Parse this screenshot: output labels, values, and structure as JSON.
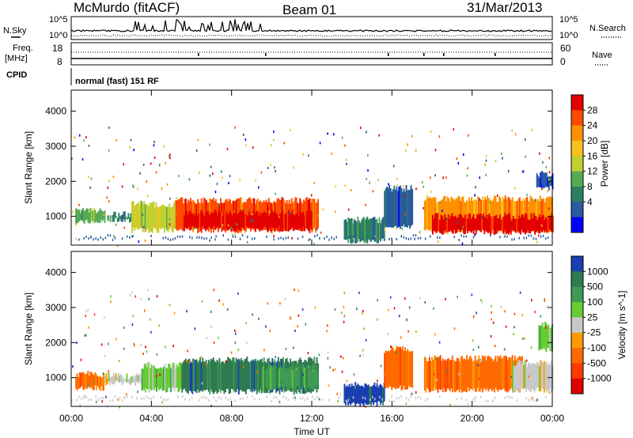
{
  "header": {
    "station": "McMurdo (fitACF)",
    "beam": "Beam 01",
    "date": "31/Mar/2013"
  },
  "top_panels": {
    "nsky_label": "N.Sky",
    "nsearch_label": "N.Search",
    "noise_left_ticks": [
      "10^5",
      "10^0"
    ],
    "noise_right_ticks": [
      "10^5",
      "10^0"
    ],
    "freq_label": "Freq.",
    "freq_unit": "[MHz]",
    "freq_ticks": [
      "18",
      "8"
    ],
    "nave_label": "Nave",
    "nave_ticks": [
      "60",
      "0"
    ],
    "cpid_label": "CPID",
    "cpid_text": "normal (fast) 151 RF"
  },
  "chart_data": [
    {
      "type": "heatmap",
      "name": "power",
      "ylabel": "Slant Range [km]",
      "xlabel": "",
      "x_ticks": [
        "00:00",
        "04:00",
        "08:00",
        "12:00",
        "16:00",
        "20:00",
        "00:00"
      ],
      "xlim_hours": [
        0,
        24
      ],
      "ylim": [
        180,
        4600
      ],
      "y_ticks": [
        1000,
        2000,
        3000,
        4000
      ],
      "colorbar": {
        "label": "Power [dB]",
        "ticks": [
          "28",
          "24",
          "20",
          "16",
          "12",
          "8",
          "4"
        ],
        "colors": [
          "#e30000",
          "#ff4a00",
          "#ff9000",
          "#f7c020",
          "#c0d030",
          "#55aa55",
          "#2a8060",
          "#2a5aa0",
          "#0000ff"
        ]
      },
      "regions": [
        {
          "t0": 0.2,
          "t1": 1.7,
          "r0": 850,
          "r1": 1150,
          "level": 5
        },
        {
          "t0": 1.8,
          "t1": 3.0,
          "r0": 900,
          "r1": 1050,
          "level": 6
        },
        {
          "t0": 3.0,
          "t1": 5.2,
          "r0": 600,
          "r1": 1350,
          "level": 4
        },
        {
          "t0": 5.2,
          "t1": 12.3,
          "r0": 600,
          "r1": 1450,
          "level": 1
        },
        {
          "t0": 5.6,
          "t1": 12.0,
          "r0": 650,
          "r1": 1100,
          "level": 0
        },
        {
          "t0": 13.6,
          "t1": 15.6,
          "r0": 300,
          "r1": 900,
          "level": 6
        },
        {
          "t0": 15.6,
          "t1": 17.0,
          "r0": 700,
          "r1": 1800,
          "level": 7
        },
        {
          "t0": 17.6,
          "t1": 24.0,
          "r0": 600,
          "r1": 1500,
          "level": 2
        },
        {
          "t0": 18.0,
          "t1": 24.0,
          "r0": 550,
          "r1": 1000,
          "level": 0
        },
        {
          "t0": 23.2,
          "t1": 24.0,
          "r0": 1800,
          "r1": 2200,
          "level": 7
        }
      ]
    },
    {
      "type": "heatmap",
      "name": "velocity",
      "ylabel": "Slant Range [km]",
      "xlabel": "Time UT",
      "x_ticks": [
        "00:00",
        "04:00",
        "08:00",
        "12:00",
        "16:00",
        "20:00",
        "00:00"
      ],
      "xlim_hours": [
        0,
        24
      ],
      "ylim": [
        180,
        4600
      ],
      "y_ticks": [
        1000,
        2000,
        3000,
        4000
      ],
      "colorbar": {
        "label": "Velocity [m s^-1]",
        "ticks": [
          "1000",
          "500",
          "100",
          "25",
          "-25",
          "-100",
          "-500",
          "-1000"
        ],
        "colors": [
          "#1a3fb0",
          "#2f7a50",
          "#3f9a55",
          "#66cc33",
          "#c8c8c8",
          "#ff9a00",
          "#ff6a00",
          "#ff3a00",
          "#e00000"
        ]
      },
      "regions": [
        {
          "t0": 0.2,
          "t1": 1.6,
          "r0": 700,
          "r1": 1100,
          "level": 6
        },
        {
          "t0": 1.6,
          "t1": 3.5,
          "r0": 850,
          "r1": 1050,
          "level": 4
        },
        {
          "t0": 3.5,
          "t1": 5.5,
          "r0": 650,
          "r1": 1350,
          "level": 3
        },
        {
          "t0": 5.5,
          "t1": 12.3,
          "r0": 600,
          "r1": 1500,
          "level": 1
        },
        {
          "t0": 9.5,
          "t1": 12.3,
          "r0": 700,
          "r1": 1300,
          "level": 2
        },
        {
          "t0": 13.6,
          "t1": 15.6,
          "r0": 250,
          "r1": 800,
          "level": 0
        },
        {
          "t0": 15.6,
          "t1": 17.0,
          "r0": 700,
          "r1": 1800,
          "level": 6
        },
        {
          "t0": 17.6,
          "t1": 22.5,
          "r0": 650,
          "r1": 1550,
          "level": 6
        },
        {
          "t0": 22.0,
          "t1": 24.0,
          "r0": 650,
          "r1": 1400,
          "level": 4
        },
        {
          "t0": 23.3,
          "t1": 24.0,
          "r0": 1800,
          "r1": 2500,
          "level": 3
        }
      ]
    }
  ]
}
